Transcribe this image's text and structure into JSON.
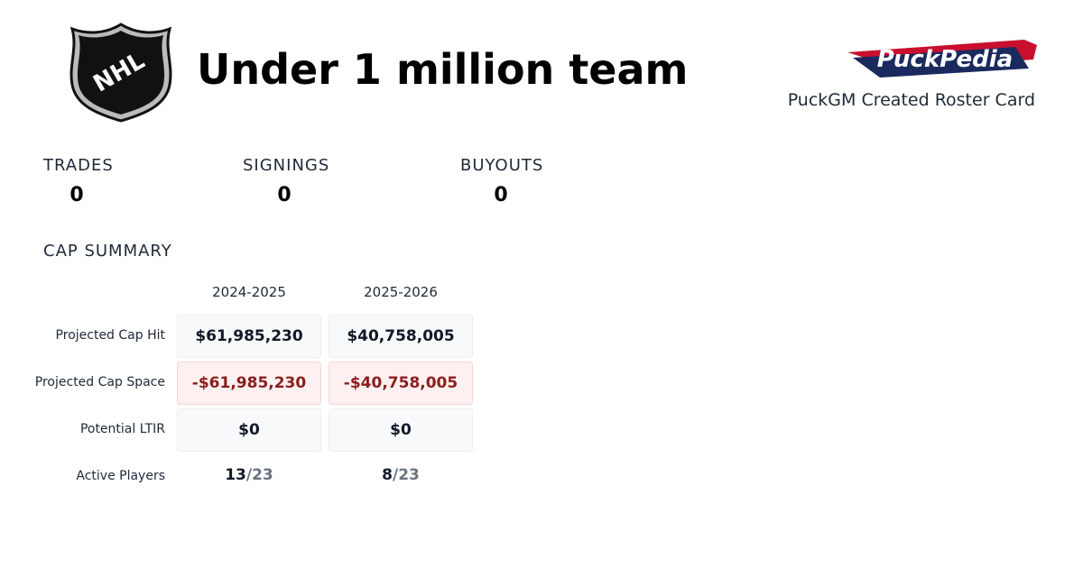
{
  "header": {
    "league_logo": "NHL",
    "title": "Under 1 million team",
    "brand_logo": "PuckPedia",
    "subtitle": "PuckGM Created Roster Card"
  },
  "stats": [
    {
      "label": "TRADES",
      "value": "0"
    },
    {
      "label": "SIGNINGS",
      "value": "0"
    },
    {
      "label": "BUYOUTS",
      "value": "0"
    }
  ],
  "cap_summary": {
    "title": "CAP SUMMARY",
    "columns": [
      "2024-2025",
      "2025-2026"
    ],
    "rows": [
      {
        "label": "Projected Cap Hit",
        "cells": [
          "$61,985,230",
          "$40,758,005"
        ]
      },
      {
        "label": "Projected Cap Space",
        "cells": [
          "-$61,985,230",
          "-$40,758,005"
        ]
      },
      {
        "label": "Potential LTIR",
        "cells": [
          "$0",
          "$0"
        ]
      }
    ],
    "active_players": {
      "label": "Active Players",
      "cells": [
        {
          "count": "13",
          "max": "/23"
        },
        {
          "count": "8",
          "max": "/23"
        }
      ]
    }
  }
}
